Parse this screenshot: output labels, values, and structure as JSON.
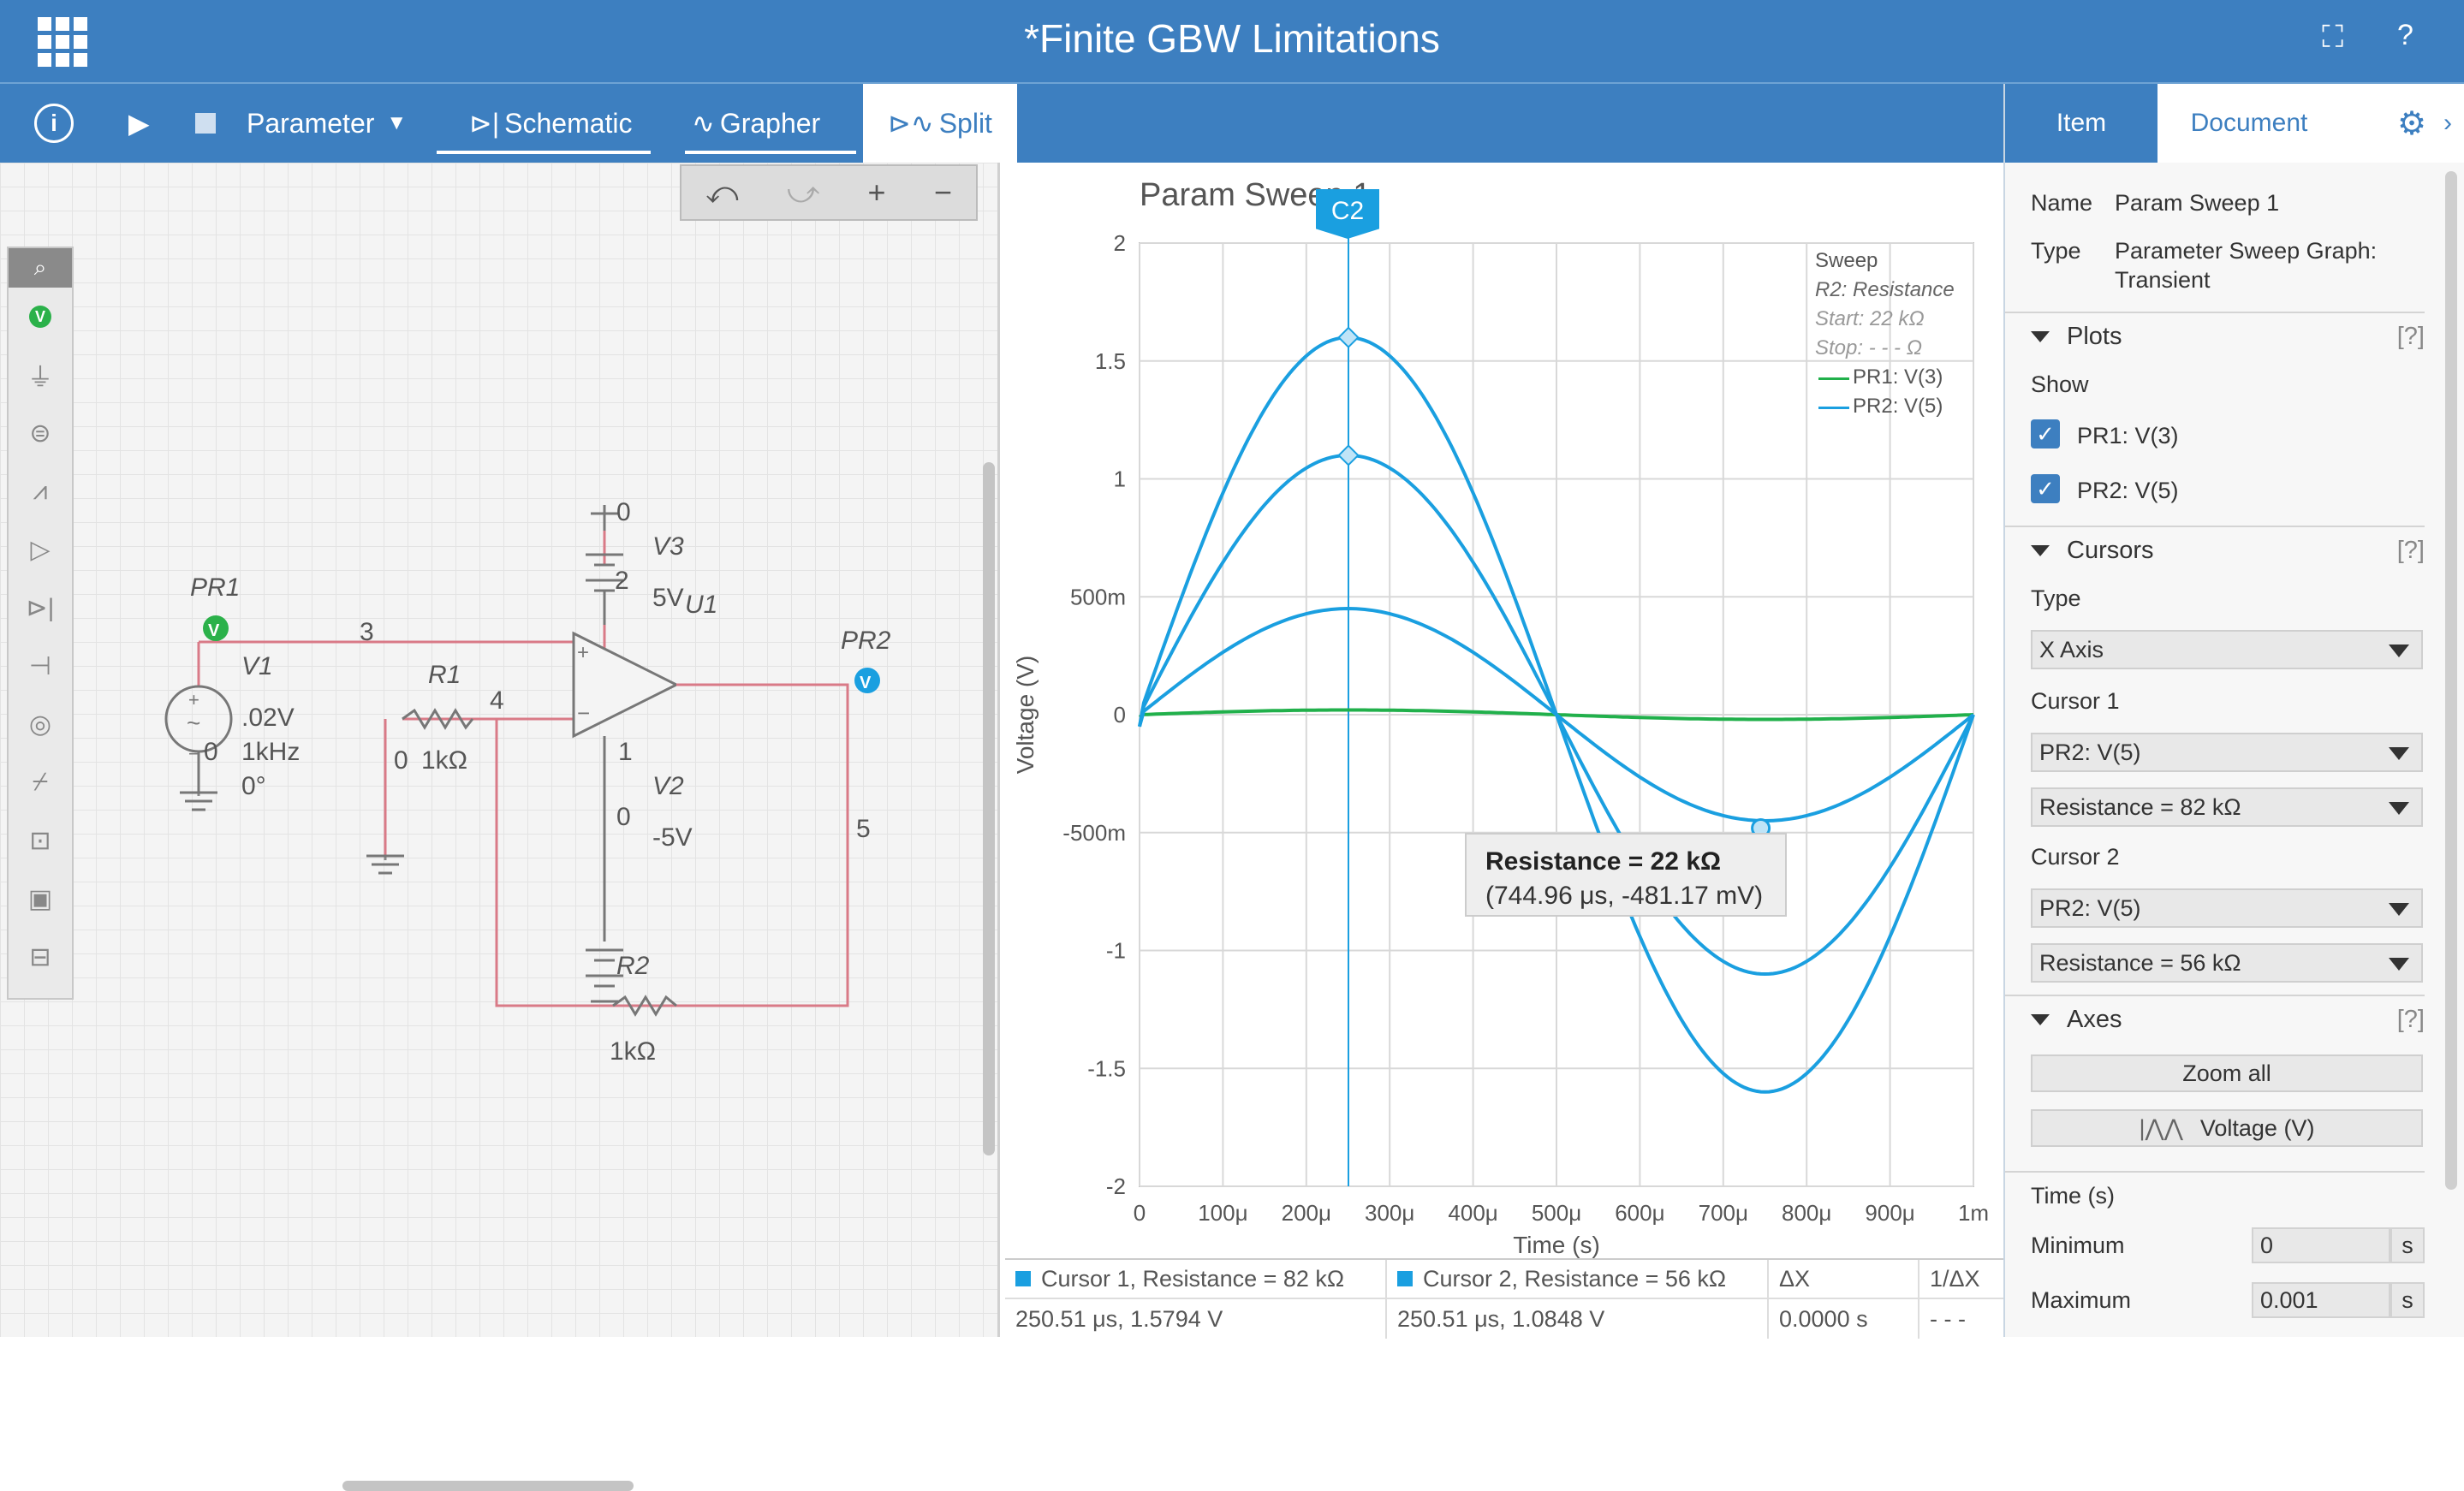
{
  "window": {
    "title": "*Finite GBW Limitations",
    "fullscreen_icon": "fullscreen-icon",
    "help_label": "?"
  },
  "toolbar": {
    "run_label": "▶",
    "parameter_label": "Parameter",
    "modes": [
      {
        "label": "Schematic"
      },
      {
        "label": "Grapher"
      },
      {
        "label": "Split"
      }
    ],
    "active_mode": "Split"
  },
  "schematic_tools": {
    "undo": "⤺",
    "redo": "⤻",
    "zoom_in": "+",
    "zoom_out": "−"
  },
  "schematic": {
    "pr1": "PR1",
    "pr2": "PR2",
    "v1": "V1",
    "v1_amp": ".02V",
    "v1_freq": "1kHz",
    "v1_phase": "0°",
    "node0_a": "0",
    "node3": "3",
    "r1": "R1",
    "r1_node": "0",
    "r1_value": "1kΩ",
    "node4": "4",
    "v3": "V3",
    "v3_value": "5V",
    "v3_node_top": "0",
    "v3_node_2": "2",
    "u1": "U1",
    "node1": "1",
    "v2": "V2",
    "v2_value": "-5V",
    "v2_node": "0",
    "node5": "5",
    "r2": "R2",
    "r2_value": "1kΩ"
  },
  "chart_data": {
    "type": "line",
    "title": "Param Sweep 1",
    "xlabel": "Time (s)",
    "ylabel": "Voltage (V)",
    "xlim": [
      0,
      0.001
    ],
    "ylim": [
      -2,
      2
    ],
    "x_ticks": [
      "0",
      "100μ",
      "200μ",
      "300μ",
      "400μ",
      "500μ",
      "600μ",
      "700μ",
      "800μ",
      "900μ",
      "1m"
    ],
    "y_ticks": [
      "2",
      "1.5",
      "1",
      "500m",
      "0",
      "-500m",
      "-1",
      "-1.5",
      "-2"
    ],
    "legend_title": "Sweep",
    "legend_param": "R2: Resistance",
    "legend_start": "Start: 22 kΩ",
    "legend_stop": "Stop: - - - Ω",
    "series": [
      {
        "name": "PR1: V(3)",
        "color": "#21b04b",
        "amplitude": 0.02,
        "start": -0.01
      },
      {
        "name": "PR2: V(5)",
        "color": "#1a9fe0",
        "amplitude": 0.45,
        "start": -0.05
      },
      {
        "name": "PR2: V(5)",
        "color": "#1a9fe0",
        "amplitude": 1.1,
        "start": -0.05
      },
      {
        "name": "PR2: V(5)",
        "color": "#1a9fe0",
        "amplitude": 1.6,
        "start": -0.05
      }
    ],
    "cursor_x": 0.00025051,
    "cursor_label": "C2",
    "marker_point": [
      0.00074496,
      -0.48117
    ]
  },
  "tooltip": {
    "title": "Resistance = 22 kΩ",
    "value": "(744.96 μs, -481.17 mV)"
  },
  "cursor_table": {
    "c1_header": "Cursor 1, Resistance = 82 kΩ",
    "c2_header": "Cursor 2, Resistance = 56 kΩ",
    "dx_header": "ΔX",
    "inv_header": "1/ΔX",
    "c1_value": "250.51 μs, 1.5794 V",
    "c2_value": "250.51 μs, 1.0848 V",
    "dx_value": "0.0000 s",
    "inv_value": "- - -"
  },
  "panel": {
    "tabs": [
      {
        "label": "Item"
      },
      {
        "label": "Document"
      }
    ],
    "name_label": "Name",
    "name_value": "Param Sweep 1",
    "type_label": "Type",
    "type_value_1": "Parameter Sweep Graph:",
    "type_value_2": "Transient",
    "plots_label": "Plots",
    "help": "[?]",
    "show_label": "Show",
    "plot1": "PR1: V(3)",
    "plot2": "PR2: V(5)",
    "cursors_label": "Cursors",
    "type2_label": "Type",
    "cursor_type": "X Axis",
    "cursor1_label": "Cursor 1",
    "cursor1_plot": "PR2: V(5)",
    "cursor1_res": "Resistance = 82 kΩ",
    "cursor2_label": "Cursor 2",
    "cursor2_plot": "PR2: V(5)",
    "cursor2_res": "Resistance = 56 kΩ",
    "axes_label": "Axes",
    "zoom_all": "Zoom all",
    "voltage_btn": "Voltage (V)",
    "time_label": "Time (s)",
    "min_label": "Minimum",
    "min_value": "0",
    "max_label": "Maximum",
    "max_value": "0.001",
    "unit": "s"
  }
}
